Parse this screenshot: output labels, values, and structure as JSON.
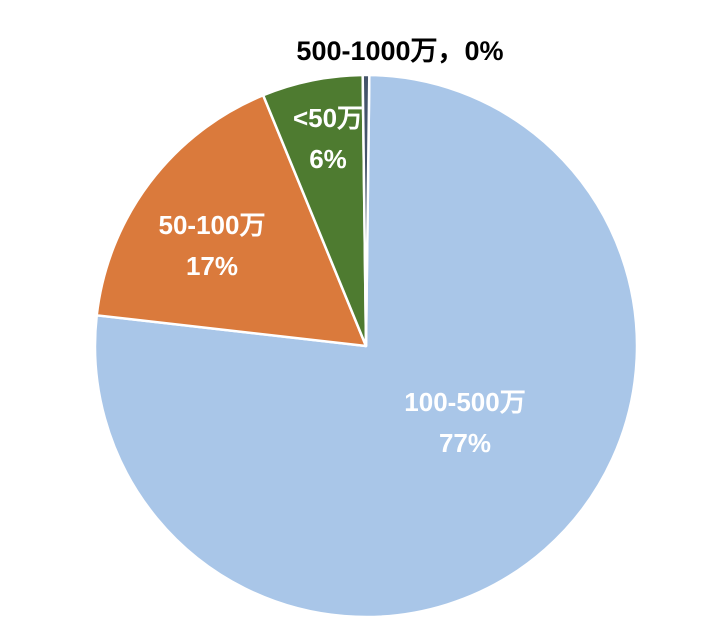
{
  "chart_data": {
    "type": "pie",
    "title": "",
    "unit": "%",
    "legend": "none",
    "start_angle": "top",
    "direction": "clockwise",
    "separator_color": "#FFFFFF",
    "background_color": "#FFFFFF",
    "slices": [
      {
        "label": "100-500万",
        "value": 77,
        "pct_text": "77%",
        "color": "#A9C6E8",
        "text_color": "#FFFFFF",
        "label_position": "inside"
      },
      {
        "label": "50-100万",
        "value": 17,
        "pct_text": "17%",
        "color": "#DA7A3C",
        "text_color": "#FFFFFF",
        "label_position": "inside"
      },
      {
        "label": "<50万",
        "value": 6,
        "pct_text": "6%",
        "color": "#4E7B30",
        "text_color": "#FFFFFF",
        "label_position": "inside"
      },
      {
        "label": "500-1000万",
        "value": 0,
        "pct_text": "0%",
        "color": "#44546A",
        "text_color": "#000000",
        "label_position": "outside",
        "callout_text": "500-1000万，0%"
      }
    ]
  }
}
